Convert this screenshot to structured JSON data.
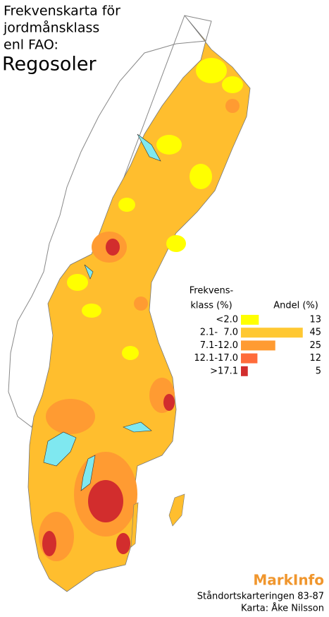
{
  "title": [
    "Frekvenskarta för",
    "jordmånsklass",
    "enl FAO:"
  ],
  "subtitle": "Regosoler",
  "legend": {
    "class_header": [
      "Frekvens-",
      "klass (%)"
    ],
    "share_header": "Andel (%)",
    "classes": [
      {
        "label": "<2.0",
        "color": "#ffff00",
        "value": 13
      },
      {
        "label": "2.1-  7.0",
        "color": "#ffc832",
        "value": 45
      },
      {
        "label": "7.1-12.0",
        "color": "#ff9b32",
        "value": 25
      },
      {
        "label": "12.1-17.0",
        "color": "#ff6b3a",
        "value": 12
      },
      {
        "label": ">17.1",
        "color": "#d22d2d",
        "value": 5
      }
    ]
  },
  "footer": {
    "brand": "MarkInfo",
    "lines": [
      "Ståndortskarteringen 83-87",
      "Karta: Åke Nilsson"
    ]
  }
}
